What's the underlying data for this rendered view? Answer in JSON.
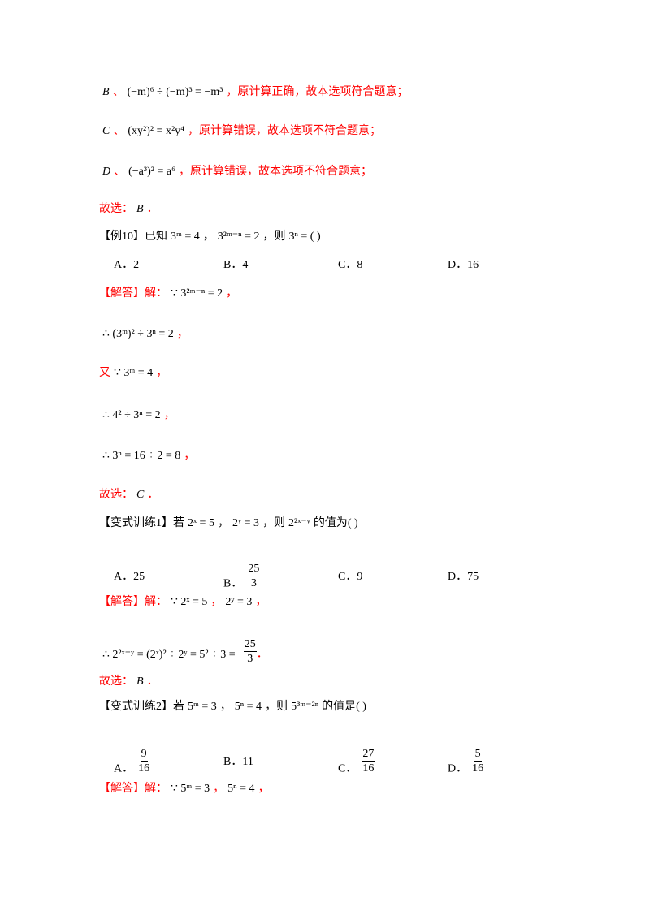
{
  "colors": {
    "answer": "#ff0000",
    "text": "#000000"
  },
  "prev_solution": {
    "B": {
      "label": "B",
      "sep": "、",
      "math": "(−m)⁶ ÷ (−m)³ = −m³",
      "comment": "，原计算正确，故本选项符合题意；"
    },
    "C": {
      "label": "C",
      "sep": "、",
      "math": "(xy²)² = x²y⁴",
      "comment": "，原计算错误，故本选项不符合题意；"
    },
    "D": {
      "label": "D",
      "sep": "、",
      "math": "(−a³)² = a⁶",
      "comment": "，原计算错误，故本选项不符合题意；"
    },
    "choose_label": "故选：",
    "choose": "B",
    "end": "．"
  },
  "example10": {
    "tag": "【例10】",
    "text1": "已知",
    "m1": "3ᵐ = 4",
    "sep": "，",
    "m2": "3²ᵐ⁻ⁿ = 2",
    "text2": "，则",
    "m3": "3ⁿ = (        )",
    "options": [
      {
        "label": "A．",
        "value": "2"
      },
      {
        "label": "B．",
        "value": "4"
      },
      {
        "label": "C．",
        "value": "8"
      },
      {
        "label": "D．",
        "value": "16"
      }
    ],
    "solution": {
      "tag": "【解答】",
      "jie": "解：",
      "l1": "∵ 3²ᵐ⁻ⁿ = 2",
      "l1_end": "，",
      "l2": "∴ (3ᵐ)² ÷ 3ⁿ = 2",
      "l2_end": "，",
      "l3_you": "又",
      "l3": "∵ 3ᵐ = 4",
      "l3_end": "，",
      "l4": "∴ 4² ÷ 3ⁿ = 2",
      "l4_end": "，",
      "l5": "∴ 3ⁿ = 16 ÷ 2 = 8",
      "l5_end": "，",
      "choose_label": "故选：",
      "choose": "C",
      "end": "．"
    }
  },
  "variant1": {
    "tag": "【变式训练1】",
    "text1": "若",
    "m1": "2ˣ = 5",
    "sep": "，",
    "m2": "2ʸ = 3",
    "text2": "，则",
    "m3": "2²ˣ⁻ʸ",
    "text3": "的值为",
    "paren": "(        )",
    "options": [
      {
        "label": "A．",
        "value": "25"
      },
      {
        "label": "B．",
        "num": "25",
        "den": "3"
      },
      {
        "label": "C．",
        "value": "9"
      },
      {
        "label": "D．",
        "value": "75"
      }
    ],
    "solution": {
      "tag": "【解答】",
      "jie": "解：",
      "l1a": "∵ 2ˣ = 5",
      "l1sep": "，",
      "l1b": "2ʸ = 3",
      "l1_end": "，",
      "l2": "∴ 2²ˣ⁻ʸ = (2ˣ)² ÷ 2ʸ = 5² ÷ 3 =",
      "l2_num": "25",
      "l2_den": "3",
      "l2_end": "．",
      "choose_label": "故选：",
      "choose": "B",
      "end": "．"
    }
  },
  "variant2": {
    "tag": "【变式训练2】",
    "text1": "若",
    "m1": "5ᵐ = 3",
    "sep": "，",
    "m2": "5ⁿ = 4",
    "text2": "，则",
    "m3": "5³ᵐ⁻²ⁿ",
    "text3": "的值是",
    "paren": "(        )",
    "options": [
      {
        "label": "A．",
        "num": "9",
        "den": "16"
      },
      {
        "label": "B．",
        "value": "11"
      },
      {
        "label": "C．",
        "num": "27",
        "den": "16"
      },
      {
        "label": "D．",
        "num": "5",
        "den": "16"
      }
    ],
    "solution": {
      "tag": "【解答】",
      "jie": "解：",
      "l1a": "∵ 5ᵐ = 3",
      "l1sep": "，",
      "l1b": "5ⁿ = 4",
      "l1_end": "，"
    }
  }
}
